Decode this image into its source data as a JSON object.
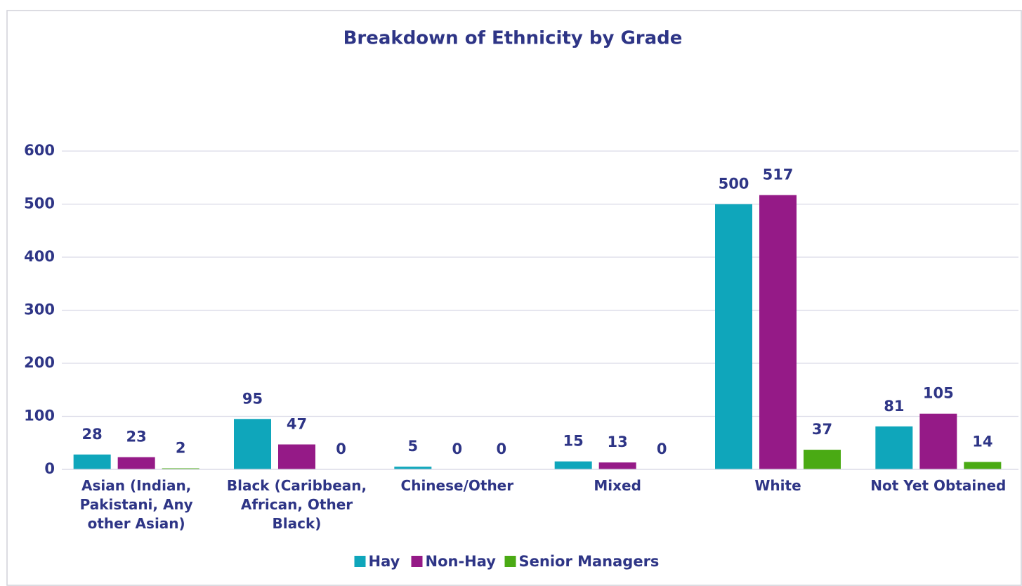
{
  "chart_data": {
    "type": "bar",
    "title": "Breakdown of Ethnicity by Grade",
    "categories": [
      "Asian (Indian, Pakistani, Any other Asian)",
      "Black (Caribbean, African, Other Black)",
      "Chinese/Other",
      "Mixed",
      "White",
      "Not Yet Obtained"
    ],
    "series": [
      {
        "name": "Hay",
        "color": "#0fa6bb",
        "values": [
          28,
          95,
          5,
          15,
          500,
          81
        ]
      },
      {
        "name": "Non-Hay",
        "color": "#951a87",
        "values": [
          23,
          47,
          0,
          13,
          517,
          105
        ]
      },
      {
        "name": "Senior Managers",
        "color": "#4aaa14",
        "values": [
          2,
          0,
          0,
          0,
          37,
          14
        ]
      }
    ],
    "ylim": [
      0,
      600
    ],
    "yticks": [
      0,
      100,
      200,
      300,
      400,
      500,
      600
    ],
    "grid": true
  }
}
